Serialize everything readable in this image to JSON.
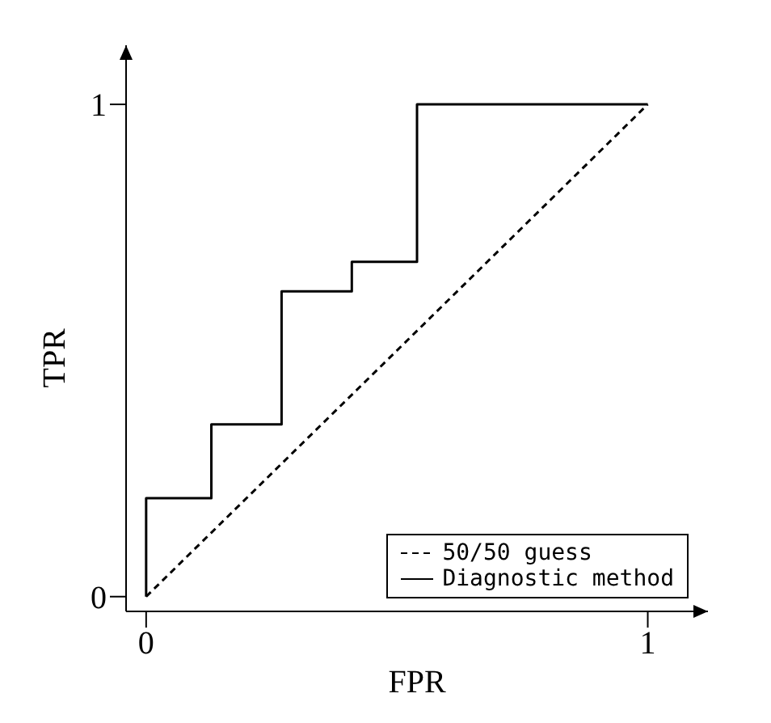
{
  "chart_data": {
    "type": "step",
    "xlabel": "FPR",
    "ylabel": "TPR",
    "xlim": [
      -0.04,
      1.12
    ],
    "ylim": [
      -0.03,
      1.12
    ],
    "xticks": [
      0,
      1
    ],
    "yticks": [
      0,
      1
    ],
    "grid": false,
    "legend": "bottom right",
    "series": [
      {
        "name": "50/50 guess",
        "type": "line",
        "color": "#000000",
        "line_style": "dashed",
        "x": [
          0,
          1
        ],
        "values": [
          0,
          1
        ]
      },
      {
        "name": "Diagnostic method",
        "color": "#000000",
        "line_style": "solid",
        "x": [
          0,
          0,
          0.13,
          0.27,
          0.41,
          0.54,
          1
        ],
        "values": [
          0,
          0.2,
          0.35,
          0.62,
          0.68,
          1,
          1
        ]
      }
    ]
  }
}
